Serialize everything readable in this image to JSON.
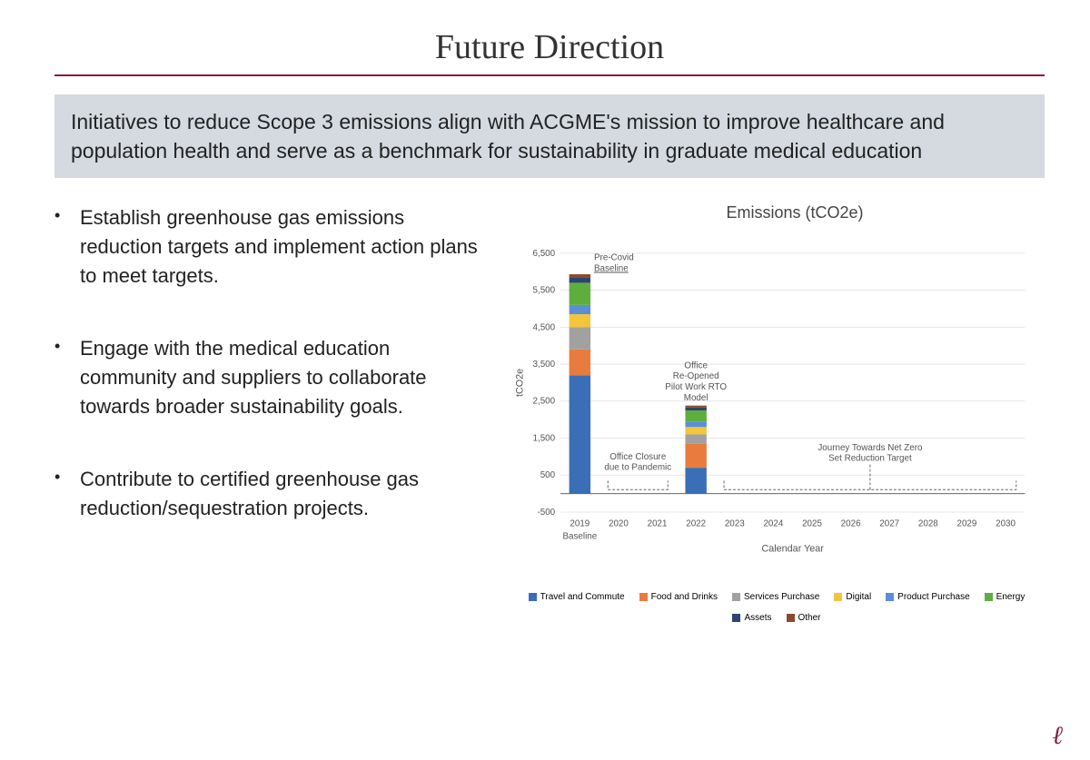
{
  "title": "Future Direction",
  "subtitle": "Initiatives to reduce Scope 3 emissions align with ACGME's mission to improve healthcare and population health and serve as a benchmark for sustainability in graduate medical education",
  "bullets": [
    "Establish greenhouse gas emissions reduction targets and implement action plans to meet targets.",
    "Engage with the medical education community and suppliers to collaborate towards broader sustainability goals.",
    "Contribute to certified greenhouse gas reduction/sequestration projects."
  ],
  "chart": {
    "title": "Emissions (tCO2e)",
    "ylabel": "tCO2e",
    "xlabel": "Calendar Year",
    "x_categories": [
      "2019",
      "2020",
      "2021",
      "2022",
      "2023",
      "2024",
      "2025",
      "2026",
      "2027",
      "2028",
      "2029",
      "2030"
    ],
    "y_ticks": [
      -500,
      500,
      1500,
      2500,
      3500,
      4500,
      5500,
      6500
    ],
    "y_min": -500,
    "y_max": 6500,
    "baseline_sub": "Baseline",
    "series": [
      {
        "name": "Travel and Commute",
        "color": "#3a6fb7"
      },
      {
        "name": "Food and Drinks",
        "color": "#e87b3e"
      },
      {
        "name": "Services Purchase",
        "color": "#a1a1a1"
      },
      {
        "name": "Digital",
        "color": "#f2c53d"
      },
      {
        "name": "Product Purchase",
        "color": "#5a8fd6"
      },
      {
        "name": "Energy",
        "color": "#5eae3f"
      },
      {
        "name": "Assets",
        "color": "#2b4570"
      },
      {
        "name": "Other",
        "color": "#8b4a2a"
      }
    ],
    "stacks": {
      "2019": [
        3200,
        700,
        600,
        350,
        250,
        600,
        150,
        80
      ],
      "2022": [
        700,
        650,
        250,
        200,
        150,
        300,
        80,
        50
      ]
    },
    "annotations": {
      "precovid": "Pre-Covid Baseline",
      "closure": "Office Closure due to  Pandemic",
      "reopened": "Office Re-Opened Pilot Work RTO Model",
      "journey": "Journey Towards Net Zero Set Reduction Target"
    },
    "grid_color": "#e0e0e0",
    "axis_color": "#666666",
    "text_color": "#555555",
    "annotation_font": 10
  },
  "colors": {
    "accent": "#8b1a3a",
    "subtitle_bg": "#d5dae0"
  }
}
